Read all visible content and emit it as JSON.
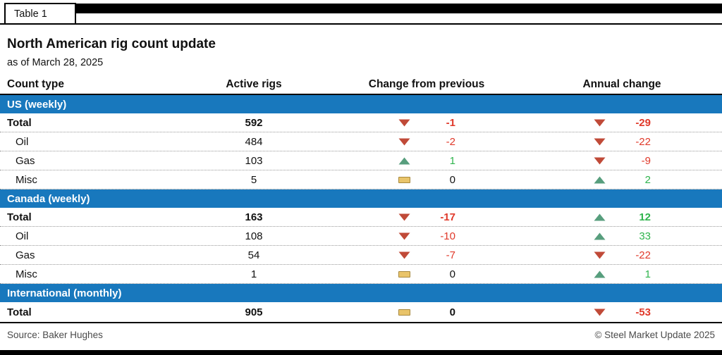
{
  "tab_label": "Table 1",
  "chart_data": {
    "type": "table",
    "title": "North American rig count update",
    "subtitle": "as of March 28, 2025",
    "columns": [
      "Count type",
      "Active rigs",
      "Change from previous",
      "Annual change"
    ],
    "sections": [
      {
        "label": "US (weekly)",
        "rows": [
          {
            "label": "Total",
            "bold": true,
            "indent": false,
            "active": "592",
            "prev": {
              "dir": "down",
              "value": "-1"
            },
            "annual": {
              "dir": "down",
              "value": "-29"
            }
          },
          {
            "label": "Oil",
            "bold": false,
            "indent": true,
            "active": "484",
            "prev": {
              "dir": "down",
              "value": "-2"
            },
            "annual": {
              "dir": "down",
              "value": "-22"
            }
          },
          {
            "label": "Gas",
            "bold": false,
            "indent": true,
            "active": "103",
            "prev": {
              "dir": "up",
              "value": "1"
            },
            "annual": {
              "dir": "down",
              "value": "-9"
            }
          },
          {
            "label": "Misc",
            "bold": false,
            "indent": true,
            "active": "5",
            "prev": {
              "dir": "flat",
              "value": "0"
            },
            "annual": {
              "dir": "up",
              "value": "2"
            }
          }
        ]
      },
      {
        "label": "Canada (weekly)",
        "rows": [
          {
            "label": "Total",
            "bold": true,
            "indent": false,
            "active": "163",
            "prev": {
              "dir": "down",
              "value": "-17"
            },
            "annual": {
              "dir": "up",
              "value": "12"
            }
          },
          {
            "label": "Oil",
            "bold": false,
            "indent": true,
            "active": "108",
            "prev": {
              "dir": "down",
              "value": "-10"
            },
            "annual": {
              "dir": "up",
              "value": "33"
            }
          },
          {
            "label": "Gas",
            "bold": false,
            "indent": true,
            "active": "54",
            "prev": {
              "dir": "down",
              "value": "-7"
            },
            "annual": {
              "dir": "down",
              "value": "-22"
            }
          },
          {
            "label": "Misc",
            "bold": false,
            "indent": true,
            "active": "1",
            "prev": {
              "dir": "flat",
              "value": "0"
            },
            "annual": {
              "dir": "up",
              "value": "1"
            }
          }
        ]
      },
      {
        "label": "International (monthly)",
        "rows": [
          {
            "label": "Total",
            "bold": true,
            "indent": false,
            "active": "905",
            "prev": {
              "dir": "flat",
              "value": "0"
            },
            "annual": {
              "dir": "down",
              "value": "-53"
            }
          }
        ]
      }
    ]
  },
  "footer": {
    "source": "Source: Baker Hughes",
    "copyright": "© Steel Market Update 2025"
  },
  "colors": {
    "section_blue": "#1878bd",
    "negative_red": "#e0392a",
    "positive_green": "#2fb44d",
    "triangle_red": "#c04a38",
    "triangle_green": "#579e7d",
    "flat_fill": "#e9c46a",
    "flat_border": "#a8893d"
  }
}
